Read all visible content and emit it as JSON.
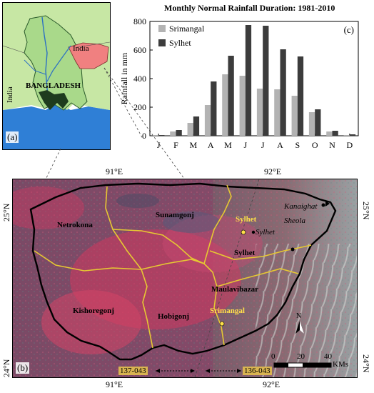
{
  "inset": {
    "country_label": "BANGLADESH",
    "india_label_ne": "India",
    "india_label_w": "India",
    "panel_tag": "(a)"
  },
  "chart_data": {
    "type": "bar",
    "title": "Monthly Normal Rainfall Duration: 1981-2010",
    "ylabel": "Rainfall in mm",
    "xlabel": "",
    "panel_tag": "(c)",
    "ylim": [
      0,
      800
    ],
    "yticks": [
      0,
      200,
      400,
      600,
      800
    ],
    "categories": [
      "J",
      "F",
      "M",
      "A",
      "M",
      "J",
      "J",
      "A",
      "S",
      "O",
      "N",
      "D"
    ],
    "series": [
      {
        "name": "Srimangal",
        "color": "#b3b3b3",
        "values": [
          5,
          30,
          90,
          215,
          430,
          420,
          330,
          325,
          280,
          165,
          30,
          5
        ]
      },
      {
        "name": "Sylhet",
        "color": "#3c3c3c",
        "values": [
          5,
          40,
          135,
          380,
          560,
          775,
          770,
          605,
          555,
          185,
          35,
          10
        ]
      }
    ],
    "legend": "top-left"
  },
  "map": {
    "panel_tag": "(b)",
    "top_lon_labels": [
      "91°E",
      "92°E"
    ],
    "bottom_lon_labels": [
      "91°E",
      "92°E"
    ],
    "left_lat_labels": [
      "25°N",
      "24°N"
    ],
    "right_lat_labels": [
      "25°N",
      "24°N"
    ],
    "districts": {
      "netrokona": "Netrokona",
      "sunamgonj": "Sunamgonj",
      "sylhet": "Sylhet",
      "maulavibazar": "Maulavibazar",
      "kishoregonj": "Kishoregonj",
      "hobigonj": "Hobigonj"
    },
    "stations": {
      "sylhet": "Sylhet",
      "srimangal": "Srimangal"
    },
    "cities": {
      "kanaighat": "Kanaighat",
      "sylhet": "Sylhet",
      "sheola": "Sheola"
    },
    "tiles": [
      "137-043",
      "136-043"
    ],
    "north_label": "N",
    "scale": {
      "ticks": [
        "0",
        "20",
        "40"
      ],
      "unit": "KMs"
    },
    "colors": {
      "boundary": "#000000",
      "district_line": "#e6c832",
      "vegetation": "#c8325a",
      "station_marker": "#ffe14a"
    }
  }
}
